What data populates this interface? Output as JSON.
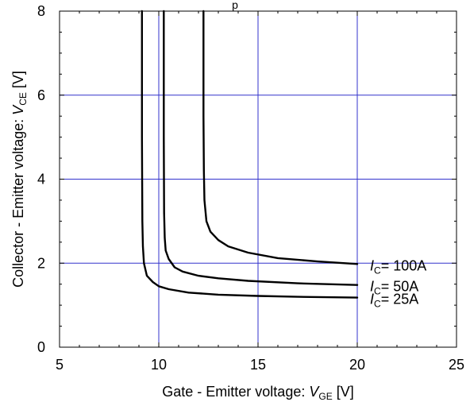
{
  "chart_data": {
    "type": "line",
    "title_fragment": "p",
    "xlabel": {
      "prefix": "Gate - Emitter voltage: ",
      "symbol": "V",
      "subscript": "GE",
      "unit": " [V]"
    },
    "ylabel": {
      "prefix": "Collector - Emitter voltage: ",
      "symbol": "V",
      "subscript": "CE",
      "unit": " [V]"
    },
    "xlim": [
      5,
      25
    ],
    "ylim": [
      0,
      8
    ],
    "xticks": [
      5,
      10,
      15,
      20,
      25
    ],
    "yticks": [
      0,
      2,
      4,
      6,
      8
    ],
    "grid": true,
    "grid_color": "#3333cc",
    "line_color": "#000000",
    "series": [
      {
        "name": "IC=25A",
        "label": {
          "symbol": "I",
          "subscript": "C",
          "text": "= 25A"
        },
        "x": [
          9.15,
          9.15,
          9.17,
          9.2,
          9.25,
          9.4,
          9.7,
          10.0,
          10.5,
          11.5,
          13.0,
          15.0,
          17.0,
          20.0
        ],
        "y": [
          8.0,
          5.0,
          3.0,
          2.4,
          2.0,
          1.7,
          1.55,
          1.45,
          1.38,
          1.3,
          1.25,
          1.22,
          1.2,
          1.18
        ]
      },
      {
        "name": "IC=50A",
        "label": {
          "symbol": "I",
          "subscript": "C",
          "text": "= 50A"
        },
        "x": [
          10.25,
          10.25,
          10.27,
          10.3,
          10.35,
          10.5,
          10.8,
          11.2,
          12.0,
          13.0,
          14.5,
          17.0,
          20.0
        ],
        "y": [
          8.0,
          5.0,
          3.2,
          2.6,
          2.3,
          2.1,
          1.9,
          1.8,
          1.7,
          1.64,
          1.58,
          1.52,
          1.48
        ]
      },
      {
        "name": "IC=100A",
        "label": {
          "symbol": "I",
          "subscript": "C",
          "text": "= 100A"
        },
        "x": [
          12.25,
          12.25,
          12.27,
          12.3,
          12.4,
          12.6,
          13.0,
          13.5,
          14.5,
          16.0,
          18.0,
          20.0
        ],
        "y": [
          8.0,
          5.5,
          4.2,
          3.5,
          3.0,
          2.75,
          2.55,
          2.4,
          2.25,
          2.12,
          2.04,
          1.98
        ]
      }
    ]
  }
}
